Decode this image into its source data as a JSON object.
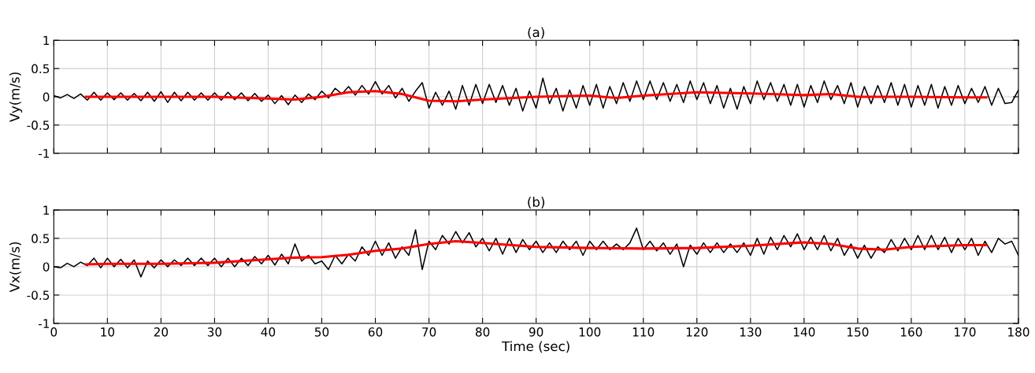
{
  "chart_data": [
    {
      "type": "line",
      "title": "(a)",
      "ylabel": "Vy(m/s)",
      "xlim": [
        0,
        180
      ],
      "xticks": [
        0,
        10,
        20,
        30,
        40,
        50,
        60,
        70,
        80,
        90,
        100,
        110,
        120,
        130,
        140,
        150,
        160,
        170,
        180
      ],
      "ylim": [
        -1,
        1
      ],
      "yticks": [
        -1,
        -0.5,
        0,
        0.5,
        1
      ],
      "grid": true,
      "tick_labels": "y",
      "x": [
        0,
        1.25,
        2.5,
        3.75,
        5,
        6.25,
        7.5,
        8.75,
        10,
        11.25,
        12.5,
        13.75,
        15,
        16.25,
        17.5,
        18.75,
        20,
        21.25,
        22.5,
        23.75,
        25,
        26.25,
        27.5,
        28.75,
        30,
        31.25,
        32.5,
        33.75,
        35,
        36.25,
        37.5,
        38.75,
        40,
        41.25,
        42.5,
        43.75,
        45,
        46.25,
        47.5,
        48.75,
        50,
        51.25,
        52.5,
        53.75,
        55,
        56.25,
        57.5,
        58.75,
        60,
        61.25,
        62.5,
        63.75,
        65,
        66.25,
        67.5,
        68.75,
        70,
        71.25,
        72.5,
        73.75,
        75,
        76.25,
        77.5,
        78.75,
        80,
        81.25,
        82.5,
        83.75,
        85,
        86.25,
        87.5,
        88.75,
        90,
        91.25,
        92.5,
        93.75,
        95,
        96.25,
        97.5,
        98.75,
        100,
        101.25,
        102.5,
        103.75,
        105,
        106.25,
        107.5,
        108.75,
        110,
        111.25,
        112.5,
        113.75,
        115,
        116.25,
        117.5,
        118.75,
        120,
        121.25,
        122.5,
        123.75,
        125,
        126.25,
        127.5,
        128.75,
        130,
        131.25,
        132.5,
        133.75,
        135,
        136.25,
        137.5,
        138.75,
        140,
        141.25,
        142.5,
        143.75,
        145,
        146.25,
        147.5,
        148.75,
        150,
        151.25,
        152.5,
        153.75,
        155,
        156.25,
        157.5,
        158.75,
        160,
        161.25,
        162.5,
        163.75,
        165,
        166.25,
        167.5,
        168.75,
        170,
        171.25,
        172.5,
        173.75,
        175,
        176.25,
        177.5,
        178.75,
        180
      ],
      "series": [
        {
          "color": "#000000",
          "values": [
            0.02,
            -0.02,
            0.04,
            -0.03,
            0.05,
            -0.06,
            0.08,
            -0.06,
            0.07,
            -0.05,
            0.07,
            -0.06,
            0.06,
            -0.07,
            0.08,
            -0.08,
            0.09,
            -0.1,
            0.08,
            -0.07,
            0.08,
            -0.06,
            0.07,
            -0.06,
            0.07,
            -0.06,
            0.08,
            -0.05,
            0.07,
            -0.07,
            0.06,
            -0.08,
            0.03,
            -0.12,
            0.02,
            -0.14,
            0.03,
            -0.1,
            0.05,
            -0.05,
            0.1,
            -0.02,
            0.15,
            0.05,
            0.18,
            0.03,
            0.2,
            0.05,
            0.27,
            0.05,
            0.2,
            -0.02,
            0.15,
            -0.08,
            0.1,
            0.25,
            -0.2,
            0.08,
            -0.15,
            0.1,
            -0.22,
            0.2,
            -0.15,
            0.22,
            -0.12,
            0.22,
            -0.1,
            0.2,
            -0.15,
            0.15,
            -0.25,
            0.1,
            -0.2,
            0.33,
            -0.12,
            0.15,
            -0.25,
            0.12,
            -0.2,
            0.2,
            -0.15,
            0.22,
            -0.2,
            0.18,
            -0.12,
            0.25,
            -0.08,
            0.28,
            -0.05,
            0.28,
            -0.05,
            0.25,
            -0.08,
            0.22,
            -0.1,
            0.28,
            -0.05,
            0.25,
            -0.12,
            0.2,
            -0.2,
            0.15,
            -0.22,
            0.18,
            -0.12,
            0.28,
            -0.05,
            0.25,
            -0.08,
            0.22,
            -0.15,
            0.22,
            -0.18,
            0.2,
            -0.1,
            0.28,
            -0.05,
            0.2,
            -0.12,
            0.25,
            -0.18,
            0.18,
            -0.12,
            0.2,
            -0.1,
            0.25,
            -0.15,
            0.22,
            -0.18,
            0.2,
            -0.15,
            0.22,
            -0.2,
            0.18,
            -0.15,
            0.2,
            -0.12,
            0.15,
            -0.1,
            0.18,
            -0.15,
            0.15,
            -0.12,
            -0.1,
            0.12
          ]
        },
        {
          "color": "#ff0000",
          "x": [
            6,
            10,
            20,
            30,
            40,
            45,
            50,
            55,
            60,
            65,
            70,
            75,
            80,
            90,
            100,
            105,
            110,
            120,
            130,
            140,
            145,
            150,
            160,
            170,
            174
          ],
          "values": [
            0,
            0,
            0,
            0,
            -0.03,
            -0.05,
            0,
            0.08,
            0.1,
            0.05,
            -0.07,
            -0.08,
            -0.05,
            0,
            0.02,
            -0.02,
            0.02,
            0.08,
            0.06,
            0.03,
            0.05,
            0,
            0,
            -0.01,
            -0.01
          ]
        }
      ]
    },
    {
      "type": "line",
      "title": "(b)",
      "xlabel": "Time (sec)",
      "ylabel": "Vx(m/s)",
      "xlim": [
        0,
        180
      ],
      "xticks": [
        0,
        10,
        20,
        30,
        40,
        50,
        60,
        70,
        80,
        90,
        100,
        110,
        120,
        130,
        140,
        150,
        160,
        170,
        180
      ],
      "ylim": [
        -1,
        1
      ],
      "yticks": [
        -1,
        -0.5,
        0,
        0.5,
        1
      ],
      "grid": true,
      "x": [
        0,
        1.25,
        2.5,
        3.75,
        5,
        6.25,
        7.5,
        8.75,
        10,
        11.25,
        12.5,
        13.75,
        15,
        16.25,
        17.5,
        18.75,
        20,
        21.25,
        22.5,
        23.75,
        25,
        26.25,
        27.5,
        28.75,
        30,
        31.25,
        32.5,
        33.75,
        35,
        36.25,
        37.5,
        38.75,
        40,
        41.25,
        42.5,
        43.75,
        45,
        46.25,
        47.5,
        48.75,
        50,
        51.25,
        52.5,
        53.75,
        55,
        56.25,
        57.5,
        58.75,
        60,
        61.25,
        62.5,
        63.75,
        65,
        66.25,
        67.5,
        68.75,
        70,
        71.25,
        72.5,
        73.75,
        75,
        76.25,
        77.5,
        78.75,
        80,
        81.25,
        82.5,
        83.75,
        85,
        86.25,
        87.5,
        88.75,
        90,
        91.25,
        92.5,
        93.75,
        95,
        96.25,
        97.5,
        98.75,
        100,
        101.25,
        102.5,
        103.75,
        105,
        106.25,
        107.5,
        108.75,
        110,
        111.25,
        112.5,
        113.75,
        115,
        116.25,
        117.5,
        118.75,
        120,
        121.25,
        122.5,
        123.75,
        125,
        126.25,
        127.5,
        128.75,
        130,
        131.25,
        132.5,
        133.75,
        135,
        136.25,
        137.5,
        138.75,
        140,
        141.25,
        142.5,
        143.75,
        145,
        146.25,
        147.5,
        148.75,
        150,
        151.25,
        152.5,
        153.75,
        155,
        156.25,
        157.5,
        158.75,
        160,
        161.25,
        162.5,
        163.75,
        165,
        166.25,
        167.5,
        168.75,
        170,
        171.25,
        172.5,
        173.75,
        175,
        176.25,
        177.5,
        178.75,
        180
      ],
      "series": [
        {
          "color": "#000000",
          "values": [
            0,
            -0.02,
            0.06,
            0,
            0.08,
            0.02,
            0.15,
            -0.02,
            0.15,
            0,
            0.13,
            -0.02,
            0.12,
            -0.18,
            0.1,
            -0.02,
            0.12,
            0,
            0.12,
            0.02,
            0.15,
            0.02,
            0.15,
            0.02,
            0.15,
            0,
            0.15,
            0,
            0.15,
            0.02,
            0.18,
            0.05,
            0.2,
            0.03,
            0.22,
            0.05,
            0.4,
            0.1,
            0.2,
            0.05,
            0.1,
            -0.05,
            0.2,
            0.05,
            0.22,
            0.1,
            0.35,
            0.2,
            0.45,
            0.2,
            0.42,
            0.15,
            0.35,
            0.2,
            0.65,
            -0.05,
            0.45,
            0.3,
            0.55,
            0.4,
            0.62,
            0.42,
            0.6,
            0.35,
            0.5,
            0.28,
            0.5,
            0.22,
            0.5,
            0.25,
            0.48,
            0.3,
            0.45,
            0.25,
            0.42,
            0.25,
            0.45,
            0.3,
            0.45,
            0.2,
            0.45,
            0.3,
            0.45,
            0.3,
            0.4,
            0.3,
            0.42,
            0.68,
            0.3,
            0.45,
            0.28,
            0.42,
            0.22,
            0.4,
            0,
            0.38,
            0.22,
            0.42,
            0.25,
            0.42,
            0.25,
            0.4,
            0.25,
            0.42,
            0.2,
            0.5,
            0.22,
            0.52,
            0.3,
            0.55,
            0.35,
            0.58,
            0.3,
            0.52,
            0.3,
            0.55,
            0.28,
            0.5,
            0.2,
            0.4,
            0.15,
            0.38,
            0.15,
            0.35,
            0.25,
            0.48,
            0.28,
            0.5,
            0.3,
            0.55,
            0.3,
            0.55,
            0.3,
            0.52,
            0.25,
            0.5,
            0.3,
            0.5,
            0.2,
            0.45,
            0.25,
            0.5,
            0.4,
            0.45,
            0.2
          ]
        },
        {
          "color": "#ff0000",
          "x": [
            6,
            10,
            20,
            30,
            40,
            45,
            50,
            55,
            60,
            65,
            70,
            75,
            80,
            90,
            100,
            110,
            120,
            130,
            140,
            145,
            150,
            155,
            160,
            170,
            174
          ],
          "values": [
            0.04,
            0.05,
            0.05,
            0.07,
            0.13,
            0.16,
            0.17,
            0.21,
            0.28,
            0.32,
            0.4,
            0.45,
            0.42,
            0.35,
            0.33,
            0.32,
            0.33,
            0.37,
            0.43,
            0.4,
            0.32,
            0.3,
            0.35,
            0.38,
            0.38
          ]
        }
      ]
    }
  ]
}
